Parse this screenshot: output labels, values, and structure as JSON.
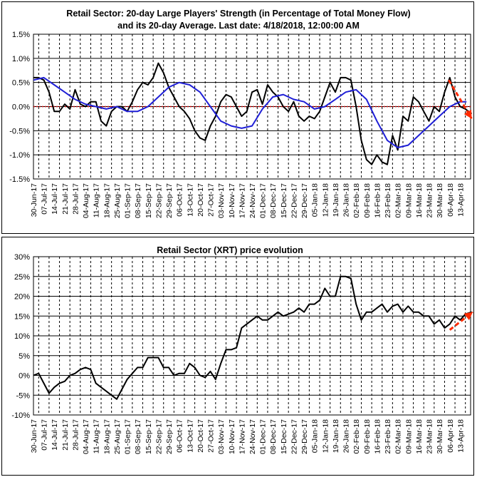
{
  "colors": {
    "strength": "#000000",
    "average": "#1f1fd6",
    "zero_line": "#d00000",
    "arrow": "#ff2a00",
    "grid": "#000000"
  },
  "chart_data": [
    {
      "type": "line",
      "title": "Retail Sector: 20-day Large Players' Strength (in Percentage of Total Money Flow)",
      "title2": "and its 20-day Average. Last date: 4/18/2018, 12:00:00 AM",
      "ylim": [
        -1.5,
        1.5
      ],
      "yticks": [
        1.5,
        1.0,
        0.5,
        0.0,
        -0.5,
        -1.0,
        -1.5
      ],
      "ytick_labels": [
        "1.5%",
        "1.0%",
        "0.5%",
        "0.0%",
        "-0.5%",
        "-1.0%",
        "-1.5%"
      ],
      "x_tick_labels": [
        "30-Jun-17",
        "07-Jul-17",
        "14-Jul-17",
        "21-Jul-17",
        "28-Jul-17",
        "04-Aug-17",
        "11-Aug-17",
        "18-Aug-17",
        "25-Aug-17",
        "01-Sep-17",
        "08-Sep-17",
        "15-Sep-17",
        "22-Sep-17",
        "29-Sep-17",
        "06-Oct-17",
        "13-Oct-17",
        "20-Oct-17",
        "27-Oct-17",
        "03-Nov-17",
        "10-Nov-17",
        "17-Nov-17",
        "24-Nov-17",
        "01-Dec-17",
        "08-Dec-17",
        "15-Dec-17",
        "22-Dec-17",
        "29-Dec-17",
        "05-Jan-18",
        "12-Jan-18",
        "19-Jan-18",
        "26-Jan-18",
        "02-Feb-18",
        "09-Feb-18",
        "16-Feb-18",
        "23-Feb-18",
        "02-Mar-18",
        "09-Mar-18",
        "16-Mar-18",
        "23-Mar-18",
        "30-Mar-18",
        "06-Apr-18",
        "13-Apr-18"
      ],
      "series": [
        {
          "color_key": "strength",
          "x": [
            0,
            0.5,
            1,
            1.5,
            2,
            2.5,
            3,
            3.5,
            4,
            4.5,
            5,
            5.5,
            6,
            6.5,
            7,
            7.5,
            8,
            8.5,
            9,
            9.5,
            10,
            10.5,
            11,
            11.5,
            12,
            12.5,
            13,
            13.5,
            14,
            14.5,
            15,
            15.5,
            16,
            16.5,
            17,
            17.5,
            18,
            18.5,
            19,
            19.5,
            20,
            20.5,
            21,
            21.5,
            22,
            22.5,
            23,
            23.5,
            24,
            24.5,
            25,
            25.5,
            26,
            26.5,
            27,
            27.5,
            28,
            28.5,
            29,
            29.5,
            30,
            30.5,
            31,
            31.5,
            32,
            32.5,
            33,
            33.5,
            34,
            34.5,
            35,
            35.5,
            36,
            36.5,
            37,
            37.5,
            38,
            38.5,
            39,
            39.5,
            40,
            40.5,
            41,
            41.5,
            42.1
          ],
          "y": [
            0.6,
            0.6,
            0.55,
            0.3,
            -0.1,
            -0.1,
            0.05,
            -0.05,
            0.35,
            0.05,
            0.0,
            0.1,
            0.1,
            -0.3,
            -0.4,
            -0.1,
            0.0,
            0.0,
            -0.1,
            0.1,
            0.35,
            0.5,
            0.45,
            0.6,
            0.9,
            0.7,
            0.4,
            0.2,
            0.0,
            -0.1,
            -0.25,
            -0.5,
            -0.65,
            -0.7,
            -0.4,
            -0.2,
            0.1,
            0.25,
            0.2,
            0.0,
            -0.2,
            -0.1,
            0.3,
            0.35,
            0.05,
            0.45,
            0.3,
            0.2,
            0.0,
            -0.1,
            0.1,
            -0.2,
            -0.3,
            -0.2,
            -0.25,
            -0.1,
            0.2,
            0.5,
            0.3,
            0.6,
            0.6,
            0.55,
            0.0,
            -0.7,
            -1.1,
            -1.2,
            -1.0,
            -1.15,
            -1.2,
            -0.6,
            -0.9,
            -0.2,
            -0.3,
            0.2,
            0.1,
            -0.1,
            -0.3,
            0.0,
            -0.1,
            0.3,
            0.6,
            0.2,
            0.0,
            -0.05,
            -0.15
          ]
        },
        {
          "color_key": "average",
          "x": [
            0,
            1,
            2,
            3,
            4,
            5,
            6,
            7,
            8,
            9,
            10,
            11,
            12,
            13,
            14,
            15,
            16,
            17,
            18,
            19,
            20,
            21,
            22,
            23,
            24,
            25,
            26,
            27,
            28,
            29,
            30,
            31,
            32,
            33,
            34,
            35,
            36,
            37,
            38,
            39,
            40,
            41,
            41.6
          ],
          "y": [
            0.55,
            0.6,
            0.45,
            0.3,
            0.15,
            0.05,
            0.0,
            -0.05,
            0.0,
            -0.1,
            -0.1,
            0.0,
            0.2,
            0.4,
            0.5,
            0.45,
            0.3,
            0.0,
            -0.3,
            -0.4,
            -0.45,
            -0.4,
            -0.05,
            0.2,
            0.25,
            0.15,
            0.1,
            -0.05,
            0.0,
            0.15,
            0.3,
            0.35,
            0.15,
            -0.3,
            -0.7,
            -0.85,
            -0.8,
            -0.6,
            -0.4,
            -0.2,
            0.0,
            0.1,
            0.1
          ]
        }
      ]
    },
    {
      "type": "line",
      "title": "Retail Sector (XRT) price evolution",
      "ylim": [
        -10,
        30
      ],
      "yticks": [
        30,
        25,
        20,
        15,
        10,
        5,
        0,
        -5,
        -10
      ],
      "ytick_labels": [
        "30%",
        "25%",
        "20%",
        "15%",
        "10%",
        "5%",
        "0%",
        "-5%",
        "-10%"
      ],
      "x_tick_labels": [
        "30-Jun-17",
        "07-Jul-17",
        "14-Jul-17",
        "21-Jul-17",
        "28-Jul-17",
        "04-Aug-17",
        "11-Aug-17",
        "18-Aug-17",
        "25-Aug-17",
        "01-Sep-17",
        "08-Sep-17",
        "15-Sep-17",
        "22-Sep-17",
        "29-Sep-17",
        "06-Oct-17",
        "13-Oct-17",
        "20-Oct-17",
        "27-Oct-17",
        "03-Nov-17",
        "10-Nov-17",
        "17-Nov-17",
        "24-Nov-17",
        "01-Dec-17",
        "08-Dec-17",
        "15-Dec-17",
        "22-Dec-17",
        "29-Dec-17",
        "05-Jan-18",
        "12-Jan-18",
        "19-Jan-18",
        "26-Jan-18",
        "02-Feb-18",
        "09-Feb-18",
        "16-Feb-18",
        "23-Feb-18",
        "02-Mar-18",
        "09-Mar-18",
        "16-Mar-18",
        "23-Mar-18",
        "30-Mar-18",
        "06-Apr-18",
        "13-Apr-18"
      ],
      "series": [
        {
          "color_key": "strength",
          "x": [
            0,
            0.5,
            1,
            1.5,
            2,
            2.5,
            3,
            3.5,
            4,
            4.5,
            5,
            5.5,
            6,
            6.5,
            7,
            7.5,
            8,
            8.5,
            9,
            9.5,
            10,
            10.5,
            11,
            11.5,
            12,
            12.5,
            13,
            13.5,
            14,
            14.5,
            15,
            15.5,
            16,
            16.5,
            17,
            17.5,
            18,
            18.5,
            19,
            19.5,
            20,
            20.5,
            21,
            21.5,
            22,
            22.5,
            23,
            23.5,
            24,
            24.5,
            25,
            25.5,
            26,
            26.5,
            27,
            27.5,
            28,
            28.5,
            29,
            29.5,
            30,
            30.5,
            31,
            31.5,
            32,
            32.5,
            33,
            33.5,
            34,
            34.5,
            35,
            35.5,
            36,
            36.5,
            37,
            37.5,
            38,
            38.5,
            39,
            39.5,
            40,
            40.5,
            41,
            41.5,
            42.1
          ],
          "y": [
            0,
            0.5,
            -2,
            -4.5,
            -3,
            -2,
            -1.5,
            0,
            0.5,
            1.5,
            2,
            1.5,
            -2,
            -3,
            -4,
            -5,
            -6,
            -3.5,
            -1,
            0.5,
            2,
            2,
            4.5,
            4.5,
            4.5,
            2,
            2,
            0,
            0.5,
            0.5,
            3,
            2,
            0,
            -0.5,
            1,
            -1,
            3,
            6.5,
            6.5,
            7,
            12,
            13,
            14,
            15,
            14,
            14,
            15,
            16,
            15,
            15.5,
            16,
            17,
            16,
            18,
            18,
            19,
            22,
            20,
            20,
            25,
            25,
            24.5,
            18,
            14,
            16,
            16,
            17,
            18,
            16,
            17.5,
            18,
            16,
            17.5,
            16,
            16,
            15,
            15,
            13,
            14,
            12,
            13,
            15,
            14,
            15.5,
            16
          ]
        }
      ]
    }
  ]
}
